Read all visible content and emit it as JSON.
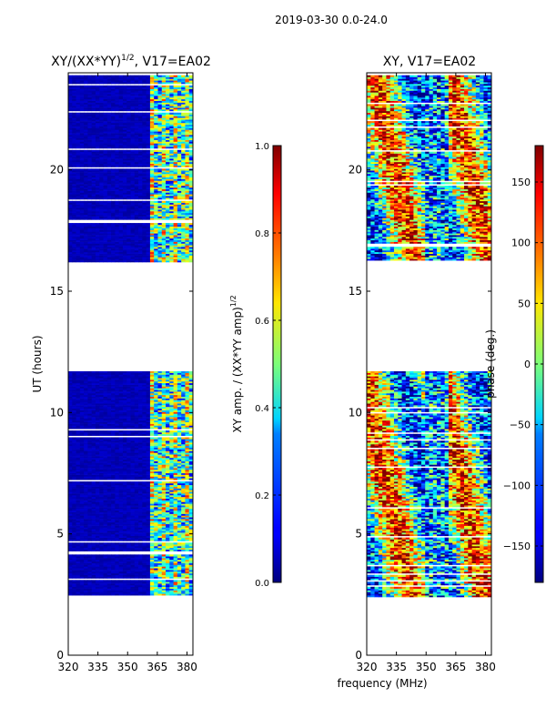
{
  "suptitle": "2019-03-30 0.0-24.0",
  "chart_data": [
    {
      "type": "heatmap",
      "title": "XY/(XX*YY)^1/2, V17=EA02",
      "title_main": "XY/(XX*YY)",
      "title_exp": "1/2",
      "title_tail": ", V17=EA02",
      "xlabel": "",
      "ylabel": "UT (hours)",
      "xlim": [
        320,
        383
      ],
      "ylim": [
        0,
        24
      ],
      "xticks": [
        320,
        335,
        350,
        365,
        380
      ],
      "yticks": [
        0,
        5,
        10,
        15,
        20
      ],
      "colorbar": {
        "label": "XY amp. / (XX*YY amp)^1/2",
        "label_main": "XY amp. / (XX*YY amp)",
        "label_exp": "1/2",
        "range": [
          0.0,
          1.0
        ],
        "ticks": [
          "0.0",
          "0.2",
          "0.4",
          "0.6",
          "0.8",
          "1.0"
        ],
        "tick_values": [
          0.0,
          0.2,
          0.4,
          0.6,
          0.8,
          1.0
        ]
      },
      "data_spans_hours": [
        [
          2.4,
          11.7
        ],
        [
          16.2,
          23.9
        ]
      ],
      "data_freq_range": [
        320,
        383
      ]
    },
    {
      "type": "heatmap",
      "title": "XY, V17=EA02",
      "xlabel": "frequency (MHz)",
      "ylabel": "",
      "xlim": [
        320,
        383
      ],
      "ylim": [
        0,
        24
      ],
      "xticks": [
        320,
        335,
        350,
        365,
        380
      ],
      "yticks": [
        0,
        5,
        10,
        15,
        20
      ],
      "colorbar": {
        "label": "phase (deg.)",
        "range": [
          -180,
          180
        ],
        "ticks": [
          "−150",
          "−100",
          "−50",
          "0",
          "50",
          "100",
          "150"
        ],
        "tick_values": [
          -150,
          -100,
          -50,
          0,
          50,
          100,
          150
        ]
      },
      "data_spans_hours": [
        [
          2.4,
          11.7
        ],
        [
          16.2,
          23.9
        ]
      ],
      "data_freq_range": [
        320,
        383
      ]
    }
  ]
}
